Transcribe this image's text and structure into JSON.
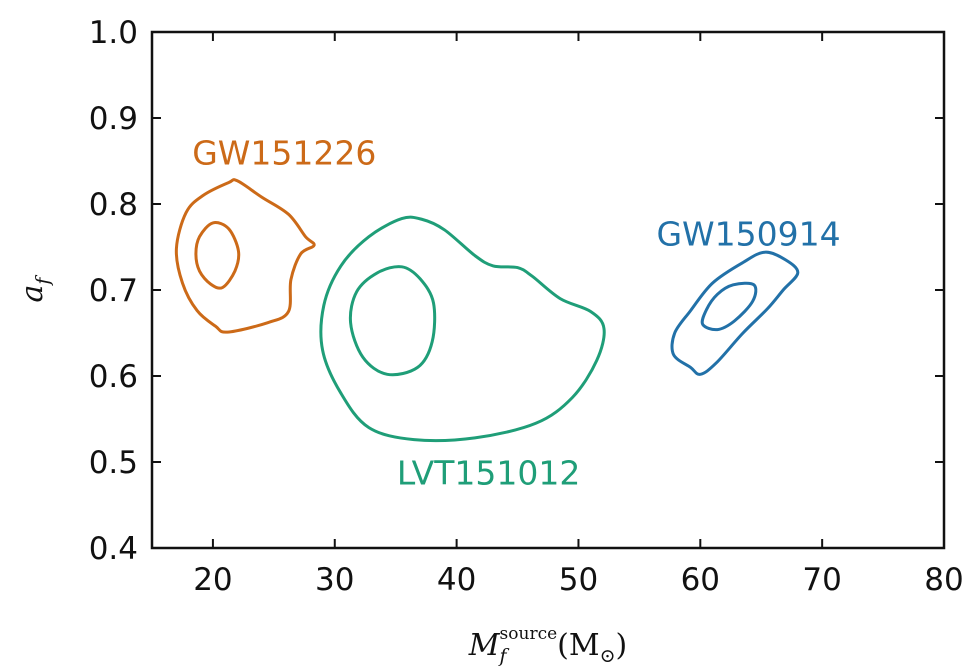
{
  "chart_data": {
    "type": "contour",
    "title": "",
    "xlabel": {
      "main": "M",
      "sub": "f",
      "sup": "source",
      "unit": "(M",
      "unit_sub": "⊙",
      "unit_close": ")"
    },
    "ylabel": {
      "main": "a",
      "sub": "f"
    },
    "xlim": [
      15,
      80
    ],
    "ylim": [
      0.4,
      1.0
    ],
    "xticks": [
      "20",
      "30",
      "40",
      "50",
      "60",
      "70",
      "80"
    ],
    "yticks": [
      "0.4",
      "0.5",
      "0.6",
      "0.7",
      "0.8",
      "0.9",
      "1.0"
    ],
    "grid": false,
    "series": [
      {
        "name": "GW151226",
        "color": "#cc6a18",
        "inner": [
          [
            20.0,
            0.778
          ],
          [
            21.3,
            0.771
          ],
          [
            22.1,
            0.745
          ],
          [
            21.8,
            0.722
          ],
          [
            20.8,
            0.703
          ],
          [
            19.8,
            0.707
          ],
          [
            18.9,
            0.722
          ],
          [
            18.6,
            0.742
          ],
          [
            18.9,
            0.762
          ],
          [
            20.0,
            0.778
          ]
        ],
        "outer": [
          [
            22.0,
            0.827
          ],
          [
            21.3,
            0.825
          ],
          [
            19.2,
            0.81
          ],
          [
            17.8,
            0.79
          ],
          [
            17.0,
            0.748
          ],
          [
            17.5,
            0.708
          ],
          [
            18.7,
            0.676
          ],
          [
            20.2,
            0.658
          ],
          [
            21.2,
            0.651
          ],
          [
            24.5,
            0.662
          ],
          [
            26.2,
            0.675
          ],
          [
            26.4,
            0.712
          ],
          [
            27.2,
            0.742
          ],
          [
            28.3,
            0.752
          ],
          [
            27.6,
            0.762
          ],
          [
            26.2,
            0.788
          ],
          [
            24.0,
            0.808
          ],
          [
            22.0,
            0.827
          ]
        ]
      },
      {
        "name": "LVT151012",
        "color": "#1f9e78",
        "inner": [
          [
            35.5,
            0.727
          ],
          [
            37.0,
            0.713
          ],
          [
            38.1,
            0.685
          ],
          [
            38.0,
            0.64
          ],
          [
            36.8,
            0.61
          ],
          [
            34.3,
            0.602
          ],
          [
            32.3,
            0.622
          ],
          [
            31.3,
            0.662
          ],
          [
            31.8,
            0.698
          ],
          [
            33.5,
            0.72
          ],
          [
            35.5,
            0.727
          ]
        ],
        "outer": [
          [
            35.5,
            0.783
          ],
          [
            37.2,
            0.782
          ],
          [
            39.0,
            0.77
          ],
          [
            41.5,
            0.74
          ],
          [
            43.0,
            0.728
          ],
          [
            45.0,
            0.726
          ],
          [
            46.2,
            0.716
          ],
          [
            48.5,
            0.69
          ],
          [
            51.0,
            0.675
          ],
          [
            52.1,
            0.655
          ],
          [
            51.5,
            0.618
          ],
          [
            49.5,
            0.575
          ],
          [
            46.5,
            0.545
          ],
          [
            41.5,
            0.528
          ],
          [
            36.5,
            0.526
          ],
          [
            32.8,
            0.54
          ],
          [
            30.5,
            0.58
          ],
          [
            29.0,
            0.63
          ],
          [
            29.1,
            0.682
          ],
          [
            30.5,
            0.728
          ],
          [
            32.8,
            0.762
          ],
          [
            35.5,
            0.783
          ]
        ]
      },
      {
        "name": "GW150914",
        "color": "#2271a8",
        "inner": [
          [
            62.7,
            0.706
          ],
          [
            64.4,
            0.706
          ],
          [
            64.3,
            0.687
          ],
          [
            62.8,
            0.664
          ],
          [
            61.4,
            0.654
          ],
          [
            60.2,
            0.66
          ],
          [
            60.5,
            0.677
          ],
          [
            61.4,
            0.695
          ],
          [
            62.7,
            0.706
          ]
        ],
        "outer": [
          [
            63.5,
            0.732
          ],
          [
            65.3,
            0.744
          ],
          [
            67.0,
            0.735
          ],
          [
            68.0,
            0.72
          ],
          [
            66.8,
            0.7
          ],
          [
            65.5,
            0.678
          ],
          [
            63.5,
            0.65
          ],
          [
            61.3,
            0.615
          ],
          [
            60.0,
            0.602
          ],
          [
            59.2,
            0.61
          ],
          [
            57.8,
            0.625
          ],
          [
            57.9,
            0.65
          ],
          [
            59.2,
            0.676
          ],
          [
            61.0,
            0.708
          ],
          [
            63.5,
            0.732
          ]
        ]
      }
    ],
    "annotations": [
      {
        "text": "GW151226",
        "x": 18.3,
        "y": 0.846,
        "color": "#cc6a18"
      },
      {
        "text": "LVT151012",
        "x": 35.1,
        "y": 0.474,
        "color": "#1f9e78"
      },
      {
        "text": "GW150914",
        "x": 56.4,
        "y": 0.752,
        "color": "#2271a8"
      }
    ]
  }
}
